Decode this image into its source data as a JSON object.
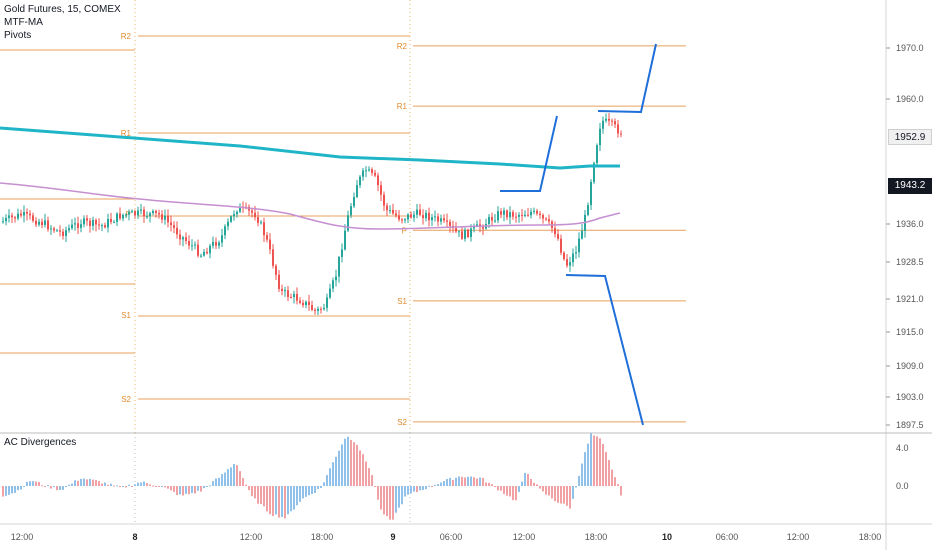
{
  "header": {
    "title": "Gold Futures, 15, COMEX",
    "indicator_1": "MTF-MA",
    "indicator_2": "Pivots"
  },
  "sub_pane": {
    "title": "AC Divergences"
  },
  "price_tags": [
    {
      "value": "1952.9",
      "style": "light"
    },
    {
      "value": "1943.2",
      "style": "dark"
    }
  ],
  "colors": {
    "candle_up": "#26a69a",
    "candle_down": "#ef5350",
    "pivot": "#e8a15a",
    "pivot_label": "#e08a2c",
    "mtf_ma_fast": "#1fb5c7",
    "mtf_ma_slow": "#c58fd0",
    "projection": "#1e6fd9",
    "hist_up": "#8fc1ea",
    "hist_down": "#f1a0a3",
    "session_line": "#f0b06a"
  },
  "chart_data": {
    "type": "line",
    "price_axis": {
      "ticks": [
        "1970.0",
        "1960.0",
        "1952.9",
        "1943.2",
        "1936.0",
        "1928.5",
        "1921.0",
        "1915.0",
        "1909.0",
        "1903.0",
        "1897.5"
      ],
      "range": [
        1897.5,
        1970.0
      ]
    },
    "indicator_axis": {
      "ticks": [
        "4.0",
        "0.0"
      ]
    },
    "time_axis": {
      "ticks": [
        "12:00",
        "8",
        "12:00",
        "18:00",
        "9",
        "06:00",
        "12:00",
        "18:00",
        "10",
        "06:00",
        "12:00",
        "18:00"
      ]
    },
    "pivot_labels": {
      "previous_session": [
        "R2",
        "R1",
        "P",
        "S1",
        "S2"
      ],
      "current_session": [
        "R2",
        "R1",
        "P",
        "S1",
        "S2"
      ]
    },
    "pivot_levels_current": {
      "R2": 1970.5,
      "R1": 1958.8,
      "P": 1934.7,
      "S1": 1921.0,
      "S2": 1897.5
    },
    "last_price": 1952.9
  }
}
